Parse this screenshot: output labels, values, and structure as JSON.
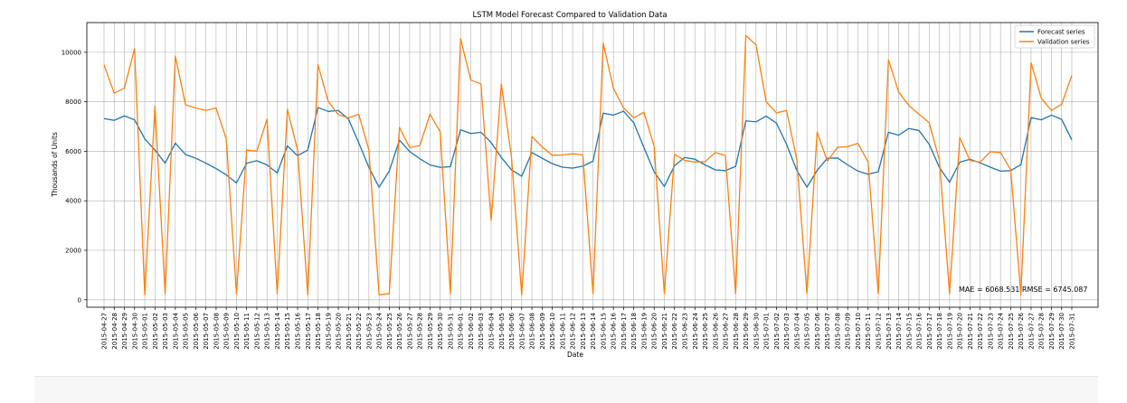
{
  "chart_data": {
    "type": "line",
    "title": "LSTM Model Forecast Compared to Validation Data",
    "xlabel": "Date",
    "ylabel": "Thousands of Units",
    "ylim": [
      -300,
      11200
    ],
    "yticks": [
      0,
      2000,
      4000,
      6000,
      8000,
      10000
    ],
    "grid": true,
    "legend_position": "top-right",
    "annotation": "MAE = 6068.531  RMSE = 6745.087",
    "x": [
      "2015-04-27",
      "2015-04-28",
      "2015-04-29",
      "2015-04-30",
      "2015-05-01",
      "2015-05-02",
      "2015-05-03",
      "2015-05-04",
      "2015-05-05",
      "2015-05-06",
      "2015-05-07",
      "2015-05-08",
      "2015-05-09",
      "2015-05-10",
      "2015-05-11",
      "2015-05-12",
      "2015-05-13",
      "2015-05-14",
      "2015-05-15",
      "2015-05-16",
      "2015-05-17",
      "2015-05-18",
      "2015-05-19",
      "2015-05-20",
      "2015-05-21",
      "2015-05-22",
      "2015-05-23",
      "2015-05-24",
      "2015-05-25",
      "2015-05-26",
      "2015-05-27",
      "2015-05-28",
      "2015-05-29",
      "2015-05-30",
      "2015-05-31",
      "2015-06-01",
      "2015-06-02",
      "2015-06-03",
      "2015-06-04",
      "2015-06-05",
      "2015-06-06",
      "2015-06-07",
      "2015-06-08",
      "2015-06-09",
      "2015-06-10",
      "2015-06-11",
      "2015-06-12",
      "2015-06-13",
      "2015-06-14",
      "2015-06-15",
      "2015-06-16",
      "2015-06-17",
      "2015-06-18",
      "2015-06-19",
      "2015-06-20",
      "2015-06-21",
      "2015-06-22",
      "2015-06-23",
      "2015-06-24",
      "2015-06-25",
      "2015-06-26",
      "2015-06-27",
      "2015-06-28",
      "2015-06-29",
      "2015-06-30",
      "2015-07-01",
      "2015-07-02",
      "2015-07-03",
      "2015-07-04",
      "2015-07-05",
      "2015-07-06",
      "2015-07-07",
      "2015-07-08",
      "2015-07-09",
      "2015-07-10",
      "2015-07-11",
      "2015-07-12",
      "2015-07-13",
      "2015-07-14",
      "2015-07-15",
      "2015-07-16",
      "2015-07-17",
      "2015-07-18",
      "2015-07-19",
      "2015-07-20",
      "2015-07-21",
      "2015-07-22",
      "2015-07-23",
      "2015-07-24",
      "2015-07-25",
      "2015-07-26",
      "2015-07-27",
      "2015-07-28",
      "2015-07-29",
      "2015-07-30",
      "2015-07-31"
    ],
    "series": [
      {
        "name": "Forecast series",
        "color": "#1f77b4",
        "values": [
          7320,
          7250,
          7430,
          7270,
          6500,
          6050,
          5520,
          6330,
          5870,
          5720,
          5520,
          5300,
          5050,
          4720,
          5520,
          5620,
          5450,
          5120,
          6220,
          5820,
          6050,
          7770,
          7610,
          7650,
          7300,
          6350,
          5350,
          4550,
          5200,
          6450,
          5990,
          5700,
          5450,
          5350,
          5380,
          6870,
          6720,
          6770,
          6350,
          5750,
          5250,
          4990,
          5950,
          5720,
          5500,
          5360,
          5320,
          5400,
          5600,
          7540,
          7460,
          7620,
          7150,
          6150,
          5170,
          4580,
          5420,
          5750,
          5680,
          5450,
          5250,
          5220,
          5390,
          7230,
          7190,
          7420,
          7140,
          6280,
          5230,
          4550,
          5230,
          5720,
          5730,
          5450,
          5200,
          5070,
          5170,
          6770,
          6650,
          6920,
          6840,
          6280,
          5350,
          4750,
          5560,
          5680,
          5530,
          5360,
          5200,
          5220,
          5460,
          7360,
          7270,
          7460,
          7290,
          6460
        ]
      },
      {
        "name": "Validation series",
        "color": "#ff7f0e",
        "values": [
          9500,
          8350,
          8550,
          10150,
          200,
          7820,
          250,
          9850,
          7880,
          7750,
          7650,
          7750,
          6500,
          250,
          6050,
          6000,
          7300,
          250,
          7700,
          6050,
          200,
          9500,
          8020,
          7480,
          7350,
          7500,
          6050,
          200,
          250,
          6970,
          6150,
          6230,
          7500,
          6790,
          250,
          10550,
          8880,
          8720,
          3200,
          8730,
          5750,
          200,
          6600,
          6180,
          5840,
          5850,
          5900,
          5850,
          250,
          10370,
          8550,
          7750,
          7350,
          7580,
          6200,
          250,
          5880,
          5630,
          5570,
          5580,
          5950,
          5830,
          250,
          10680,
          10300,
          8000,
          7550,
          7650,
          5670,
          250,
          6770,
          5600,
          6160,
          6190,
          6320,
          5570,
          250,
          9700,
          8400,
          7850,
          7500,
          7150,
          5650,
          250,
          6560,
          5630,
          5560,
          5980,
          5950,
          5250,
          200,
          9580,
          8150,
          7650,
          7900,
          9070
        ]
      }
    ]
  }
}
